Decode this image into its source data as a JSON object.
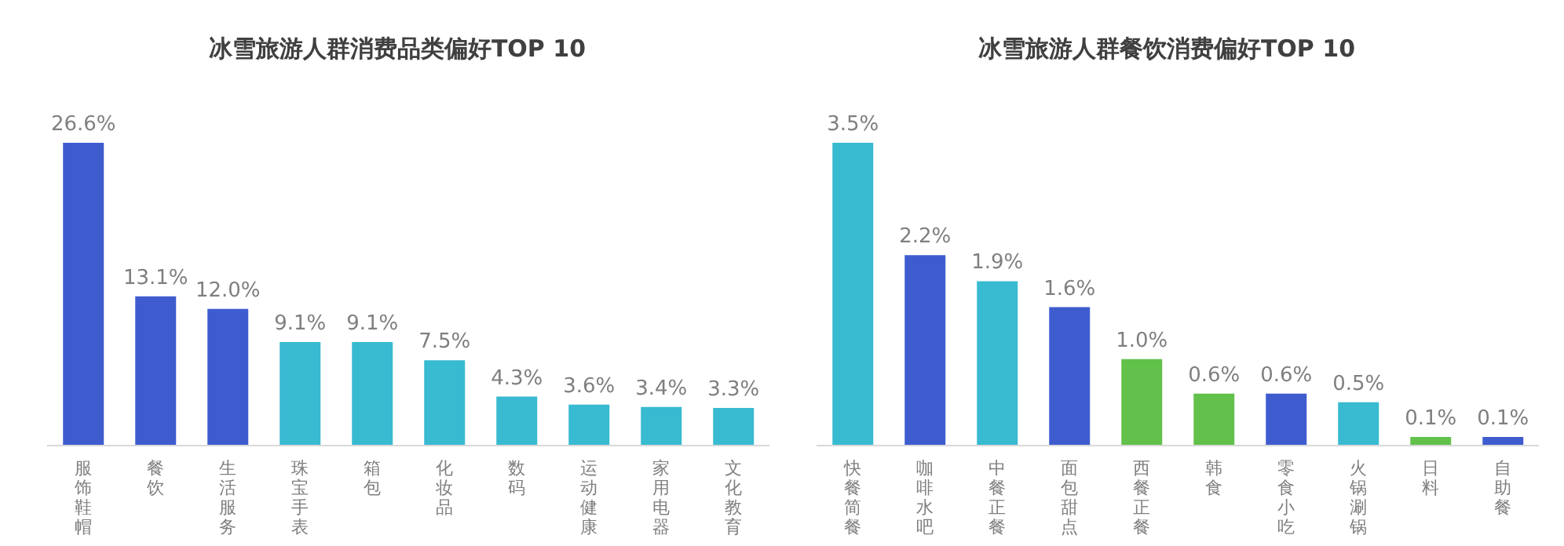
{
  "chart_data": [
    {
      "type": "bar",
      "title": "冰雪旅游人群消费品类偏好TOP 10",
      "categories": [
        "服饰鞋帽",
        "餐饮",
        "生活服务",
        "珠宝手表",
        "箱包",
        "化妆品",
        "数码",
        "运动健康",
        "家用电器",
        "文化教育"
      ],
      "values": [
        26.6,
        13.1,
        12.0,
        9.1,
        9.1,
        7.5,
        4.3,
        3.6,
        3.4,
        3.3
      ],
      "value_labels": [
        "26.6%",
        "13.1%",
        "12.0%",
        "9.1%",
        "9.1%",
        "7.5%",
        "4.3%",
        "3.6%",
        "3.4%",
        "3.3%"
      ],
      "colors": [
        "#3f5ccf",
        "#3f5ccf",
        "#3f5ccf",
        "#38bad1",
        "#38bad1",
        "#38bad1",
        "#38bad1",
        "#38bad1",
        "#38bad1",
        "#38bad1"
      ],
      "tick_labels": "x",
      "grid": false,
      "legend": false
    },
    {
      "type": "bar",
      "title": "冰雪旅游人群餐饮消费偏好TOP 10",
      "categories": [
        "快餐简餐",
        "咖啡水吧",
        "中餐正餐",
        "面包甜点",
        "西餐正餐",
        "韩食",
        "零食小吃",
        "火锅涮锅",
        "日料",
        "自助餐"
      ],
      "values": [
        3.5,
        2.2,
        1.9,
        1.6,
        1.0,
        0.6,
        0.6,
        0.5,
        0.1,
        0.1
      ],
      "value_labels": [
        "3.5%",
        "2.2%",
        "1.9%",
        "1.6%",
        "1.0%",
        "0.6%",
        "0.6%",
        "0.5%",
        "0.1%",
        "0.1%"
      ],
      "colors": [
        "#38bad1",
        "#3f5ccf",
        "#38bad1",
        "#3f5ccf",
        "#62c14b",
        "#62c14b",
        "#3f5ccf",
        "#38bad1",
        "#62c14b",
        "#3f5ccf"
      ],
      "tick_labels": "x",
      "grid": false,
      "legend": false
    }
  ]
}
